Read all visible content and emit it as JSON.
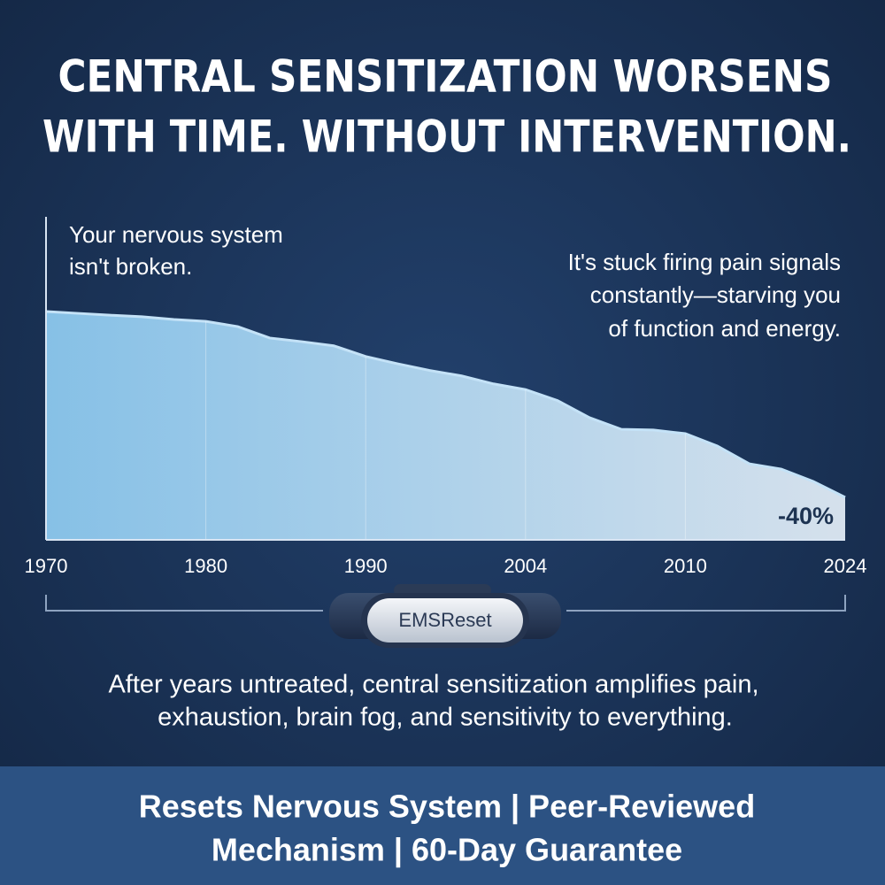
{
  "chart_data": {
    "type": "area",
    "title": [
      "CENTRAL SENSITIZATION WORSENS",
      "WITH TIME. WITHOUT INTERVENTION."
    ],
    "annotations": [
      [
        "Your nervous system",
        "isn't broken."
      ],
      [
        "It's stuck firing pain signals",
        "constantly—starving you",
        "of function and energy."
      ],
      "-40%"
    ],
    "categories": [
      "1970",
      null,
      null,
      null,
      null,
      "1980",
      null,
      null,
      null,
      null,
      "1990",
      null,
      null,
      null,
      null,
      "2004",
      null,
      null,
      null,
      null,
      "2010",
      null,
      null,
      null,
      null,
      "2024"
    ],
    "values": [
      100,
      99.2,
      98.4,
      97.7,
      96.5,
      95.7,
      93.4,
      88.4,
      86.8,
      85.0,
      80.3,
      77.1,
      74.2,
      71.8,
      68.3,
      65.8,
      61.0,
      53.5,
      48.4,
      48.1,
      46.5,
      41.1,
      33.3,
      31.0,
      25.6,
      18.6
    ],
    "color": "#8cc8ee",
    "ylim": [
      0,
      100
    ],
    "grid": true
  },
  "device_label": "EMSReset",
  "caption": [
    "After years untreated, central sensitization amplifies pain,",
    "exhaustion, brain fog, and sensitivity to everything."
  ],
  "banner": [
    "Resets Nervous System | Peer-Reviewed",
    "Mechanism | 60-Day Guarantee"
  ]
}
